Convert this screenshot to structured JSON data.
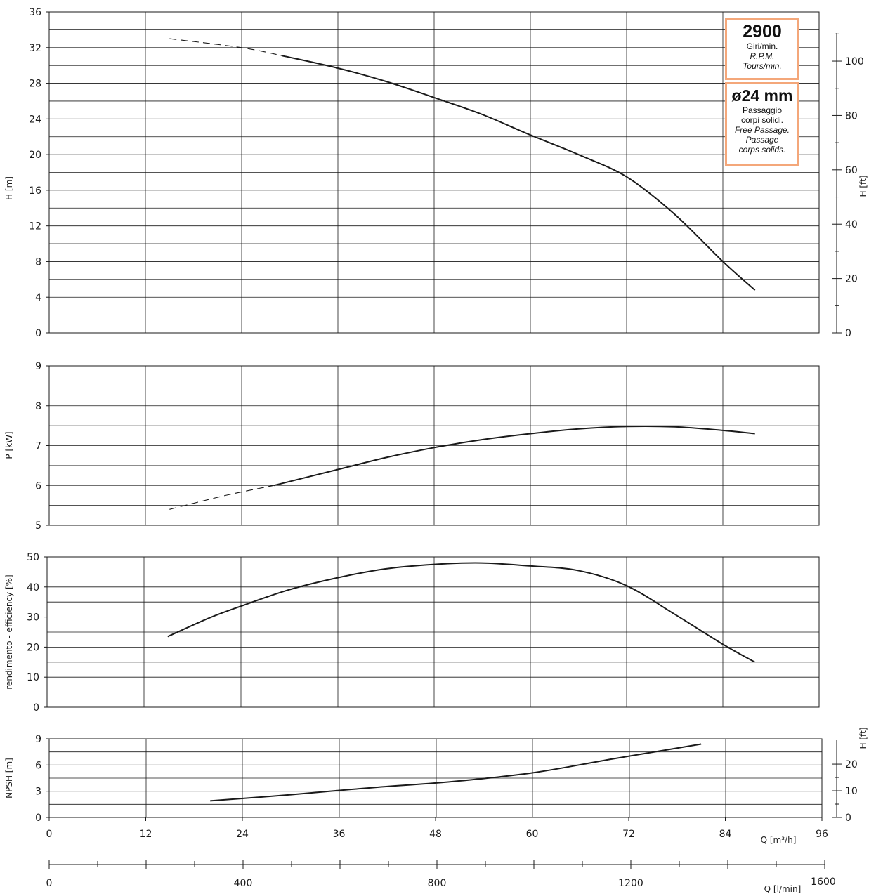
{
  "chart_data": [
    {
      "type": "line",
      "ylabel": "H [m]",
      "ylabel_right": "H [ft]",
      "ylim": [
        0,
        36
      ],
      "yticks": [
        "0",
        "4",
        "8",
        "12",
        "16",
        "20",
        "24",
        "28",
        "32",
        "36"
      ],
      "ylim_right": [
        0,
        118.1
      ],
      "yticks_right": [
        "0",
        "20",
        "40",
        "60",
        "80",
        "100"
      ],
      "series": [
        {
          "style": "dashed",
          "x": [
            15,
            24,
            29
          ],
          "y": [
            33.0,
            32.0,
            31.1
          ]
        },
        {
          "style": "solid",
          "x": [
            29,
            36,
            42,
            48,
            54,
            60,
            66,
            72,
            78,
            84,
            88
          ],
          "y": [
            31.1,
            29.7,
            28.2,
            26.4,
            24.5,
            22.2,
            20.0,
            17.5,
            13.3,
            8.0,
            4.8
          ]
        }
      ]
    },
    {
      "type": "line",
      "ylabel": "P  [kW]",
      "ylim": [
        5,
        9
      ],
      "yticks": [
        "5",
        "6",
        "7",
        "8",
        "9"
      ],
      "series": [
        {
          "style": "dashed",
          "x": [
            15,
            22,
            28
          ],
          "y": [
            5.4,
            5.75,
            6.0
          ]
        },
        {
          "style": "solid",
          "x": [
            28,
            36,
            42,
            48,
            54,
            60,
            66,
            72,
            78,
            84,
            88
          ],
          "y": [
            6.0,
            6.4,
            6.7,
            6.95,
            7.15,
            7.3,
            7.42,
            7.48,
            7.47,
            7.38,
            7.3
          ]
        }
      ]
    },
    {
      "type": "line",
      "ylabel": "rendimento - efficiency  [%]",
      "ylim": [
        0,
        50
      ],
      "yticks": [
        "0",
        "10",
        "20",
        "30",
        "40",
        "50"
      ],
      "series": [
        {
          "style": "solid",
          "x": [
            15,
            20,
            24,
            30,
            36,
            42,
            48,
            54,
            60,
            66,
            72,
            78,
            84,
            88
          ],
          "y": [
            23.5,
            29.5,
            33.5,
            39.0,
            43.0,
            46.0,
            47.5,
            48.0,
            47.0,
            45.5,
            40.5,
            31.0,
            21.0,
            15.0
          ]
        }
      ]
    },
    {
      "type": "line",
      "ylabel": "NPSH  [m]",
      "ylabel_right": "H [ft]",
      "ylim": [
        0,
        9
      ],
      "yticks": [
        "0",
        "3",
        "6",
        "9"
      ],
      "ylim_right": [
        0,
        29.5
      ],
      "yticks_right": [
        "0",
        "10",
        "20"
      ],
      "series": [
        {
          "style": "solid",
          "x": [
            20,
            30,
            40,
            50,
            60,
            70,
            81
          ],
          "y": [
            1.9,
            2.6,
            3.4,
            4.1,
            5.1,
            6.7,
            8.4
          ]
        }
      ]
    }
  ],
  "x_axis": {
    "unit": "Q [m³/h]",
    "range": [
      0,
      96
    ],
    "ticks": [
      "0",
      "12",
      "24",
      "36",
      "48",
      "60",
      "72",
      "84",
      "96"
    ]
  },
  "x_axis_secondary": {
    "unit": "Q [l/min]",
    "range": [
      0,
      1600
    ],
    "ticks": [
      "0",
      "400",
      "800",
      "1200",
      "1600"
    ]
  },
  "info": {
    "speed": "2900",
    "speed_lines": [
      "Giri/min.",
      "R.P.M.",
      "Tours/min."
    ],
    "passage": "ø24 mm",
    "passage_lines": [
      "Passaggio",
      "corpi solidi.",
      "Free Passage.",
      "Passage",
      "corps solids."
    ]
  },
  "colors": {
    "curve": "#1a1a1a",
    "grid": "#1a1a1a",
    "box_border": "#f4a77a"
  }
}
